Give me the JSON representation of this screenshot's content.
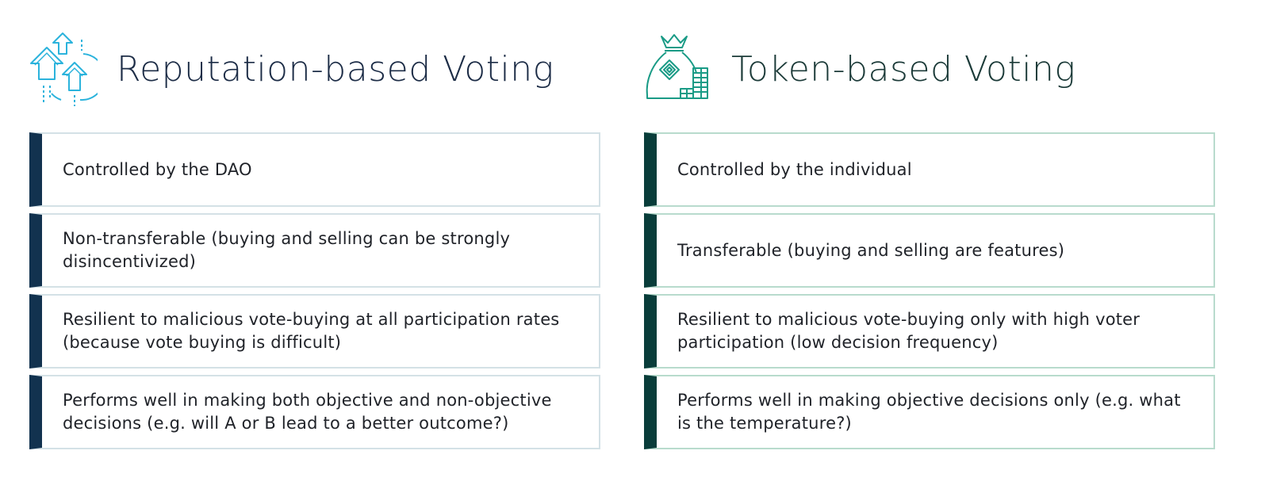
{
  "colors": {
    "left_accent": "#12324f",
    "left_border": "#d4e1e6",
    "left_title": "#1c2c46",
    "left_icon": "#2bb3dc",
    "right_accent": "#093d3a",
    "right_border": "#b8dbcd",
    "right_title": "#1b3a38",
    "right_icon": "#1a9b86"
  },
  "left": {
    "icon": "arrows-up-icon",
    "title": "Reputation-based Voting",
    "items": [
      {
        "text": "Controlled by the DAO"
      },
      {
        "text": "Non-transferable (buying and selling can be strongly disincentivized)"
      },
      {
        "text": "Resilient to malicious vote-buying at all participation rates (because vote buying is difficult)"
      },
      {
        "text": "Performs well in making both objective and non-objective decisions (e.g. will A or B lead to a better outcome?)"
      }
    ]
  },
  "right": {
    "icon": "money-bag-coins-icon",
    "title": "Token-based Voting",
    "items": [
      {
        "text": "Controlled by the individual"
      },
      {
        "text": "Transferable (buying and selling are features)"
      },
      {
        "text": "Resilient to malicious vote-buying only with high voter participation (low decision frequency)"
      },
      {
        "text": "Performs well in making objective decisions only (e.g. what is the temperature?)"
      }
    ]
  }
}
